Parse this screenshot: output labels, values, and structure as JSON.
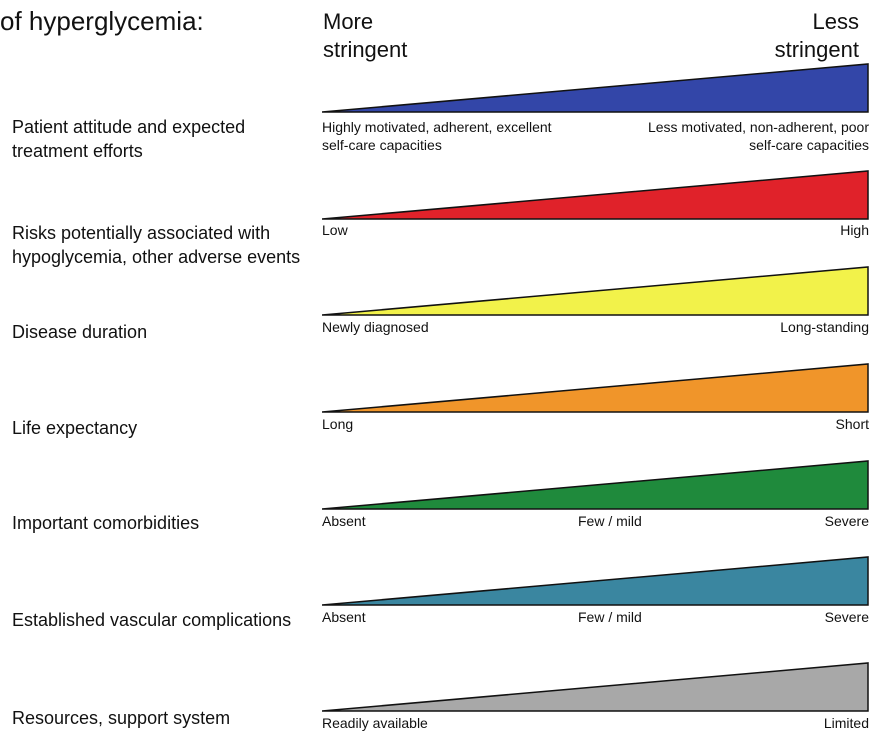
{
  "title": "of hyperglycemia:",
  "header": {
    "left": "More\nstringent",
    "right": "Less\nstringent"
  },
  "factors": [
    {
      "label": "Patient attitude and expected treatment efforts",
      "color": "#3346a8",
      "left_label": "Highly motivated, adherent, excellent self-care capacities",
      "right_label": "Less motivated, non-adherent, poor self-care capacities"
    },
    {
      "label": "Risks potentially associated with hypoglycemia, other adverse events",
      "color": "#e0222a",
      "left_label": "Low",
      "right_label": "High"
    },
    {
      "label": "Disease duration",
      "color": "#f2f24a",
      "left_label": "Newly diagnosed",
      "right_label": "Long-standing"
    },
    {
      "label": "Life expectancy",
      "color": "#f0952a",
      "left_label": "Long",
      "right_label": "Short"
    },
    {
      "label": "Important comorbidities",
      "color": "#1f8a3c",
      "left_label": "Absent",
      "mid_label": "Few / mild",
      "right_label": "Severe"
    },
    {
      "label": "Established vascular complications",
      "color": "#3a86a0",
      "left_label": "Absent",
      "mid_label": "Few / mild",
      "right_label": "Severe"
    },
    {
      "label": "Resources, support system",
      "color": "#a8a8a8",
      "left_label": "Readily available",
      "right_label": "Limited"
    }
  ]
}
